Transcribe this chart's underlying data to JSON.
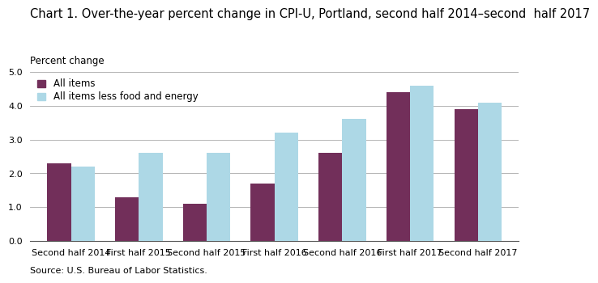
{
  "title": "Chart 1. Over-the-year percent change in CPI-U, Portland, second half 2014–second  half 2017",
  "ylabel": "Percent change",
  "source": "Source: U.S. Bureau of Labor Statistics.",
  "categories": [
    "Second half 2014",
    "First half 2015",
    "Second half 2015",
    "First half 2016",
    "Second half 2016",
    "First half 2017",
    "Second half 2017"
  ],
  "all_items": [
    2.3,
    1.3,
    1.1,
    1.7,
    2.6,
    4.4,
    3.9
  ],
  "all_items_less": [
    2.2,
    2.6,
    2.6,
    3.2,
    3.6,
    4.6,
    4.1
  ],
  "color_all_items": "#722F5A",
  "color_less": "#ADD8E6",
  "ylim": [
    0.0,
    5.0
  ],
  "yticks": [
    0.0,
    1.0,
    2.0,
    3.0,
    4.0,
    5.0
  ],
  "legend_all_items": "All items",
  "legend_less": "All items less food and energy",
  "bar_width": 0.35,
  "title_fontsize": 10.5,
  "axis_label_fontsize": 8.5,
  "tick_fontsize": 8,
  "legend_fontsize": 8.5,
  "source_fontsize": 8
}
